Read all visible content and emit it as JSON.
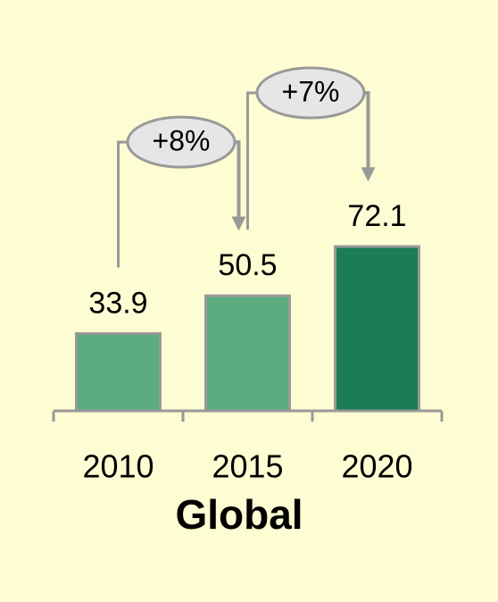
{
  "chart_data": {
    "type": "bar",
    "title": "Global",
    "categories": [
      "2010",
      "2015",
      "2020"
    ],
    "values": [
      33.9,
      50.5,
      72.1
    ],
    "colors": [
      "#5aab80",
      "#5aab80",
      "#1b7c57"
    ],
    "annotations": [
      "+8%",
      "+7%"
    ]
  }
}
